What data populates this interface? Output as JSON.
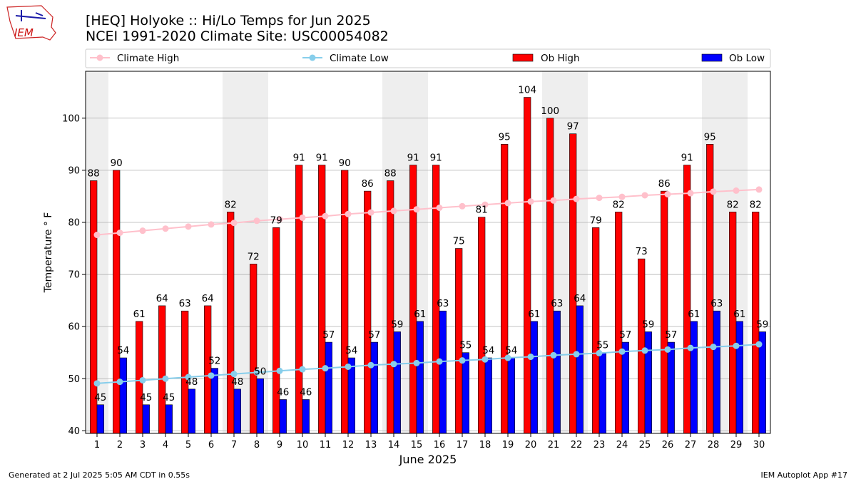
{
  "title_line1": "[HEQ] Holyoke :: Hi/Lo Temps for Jun 2025",
  "title_line2": "NCEI 1991-2020 Climate Site: USC00054082",
  "logo_text": "IEM",
  "footer_left": "Generated at 2 Jul 2025 5:05 AM CDT in 0.55s",
  "footer_right": "IEM Autoplot App #17",
  "colors": {
    "ob_high": "#ff0000",
    "ob_low": "#0000ff",
    "climate_high": "#ffc0cb",
    "climate_low": "#87ceeb",
    "weekend_band": "#eeeeee",
    "grid": "#b0b0b0"
  },
  "chart_data": {
    "type": "bar",
    "title": "[HEQ] Holyoke :: Hi/Lo Temps for Jun 2025",
    "xlabel": "June 2025",
    "ylabel": "Temperature ° F",
    "ylim": [
      39.5,
      109
    ],
    "yticks": [
      40,
      50,
      60,
      70,
      80,
      90,
      100
    ],
    "categories": [
      "1",
      "2",
      "3",
      "4",
      "5",
      "6",
      "7",
      "8",
      "9",
      "10",
      "11",
      "12",
      "13",
      "14",
      "15",
      "16",
      "17",
      "18",
      "19",
      "20",
      "21",
      "22",
      "23",
      "24",
      "25",
      "26",
      "27",
      "28",
      "29",
      "30"
    ],
    "shaded_days": [
      1,
      7,
      8,
      14,
      15,
      21,
      22,
      28,
      29
    ],
    "legend_position": "top",
    "series": [
      {
        "name": "Ob High",
        "kind": "bar",
        "values": [
          88,
          90,
          61,
          64,
          63,
          64,
          82,
          72,
          79,
          91,
          91,
          90,
          86,
          88,
          91,
          91,
          75,
          81,
          95,
          104,
          100,
          97,
          79,
          82,
          73,
          86,
          91,
          95,
          82,
          82
        ]
      },
      {
        "name": "Ob Low",
        "kind": "bar",
        "values": [
          45,
          54,
          45,
          45,
          48,
          52,
          48,
          50,
          46,
          46,
          57,
          54,
          57,
          59,
          61,
          63,
          55,
          54,
          54,
          61,
          63,
          64,
          55,
          57,
          59,
          57,
          61,
          63,
          61,
          59
        ]
      },
      {
        "name": "Climate High",
        "kind": "line",
        "values": [
          77.6,
          78.0,
          78.4,
          78.8,
          79.2,
          79.6,
          79.9,
          80.3,
          80.6,
          80.9,
          81.2,
          81.6,
          81.9,
          82.2,
          82.5,
          82.8,
          83.1,
          83.4,
          83.7,
          84.0,
          84.2,
          84.5,
          84.7,
          84.9,
          85.2,
          85.4,
          85.6,
          85.9,
          86.1,
          86.3
        ]
      },
      {
        "name": "Climate Low",
        "kind": "line",
        "values": [
          49.1,
          49.4,
          49.7,
          50.0,
          50.3,
          50.6,
          50.9,
          51.2,
          51.5,
          51.8,
          52.0,
          52.3,
          52.6,
          52.8,
          53.0,
          53.3,
          53.5,
          53.7,
          54.0,
          54.2,
          54.5,
          54.7,
          54.9,
          55.2,
          55.4,
          55.6,
          55.9,
          56.1,
          56.3,
          56.6
        ]
      }
    ]
  }
}
